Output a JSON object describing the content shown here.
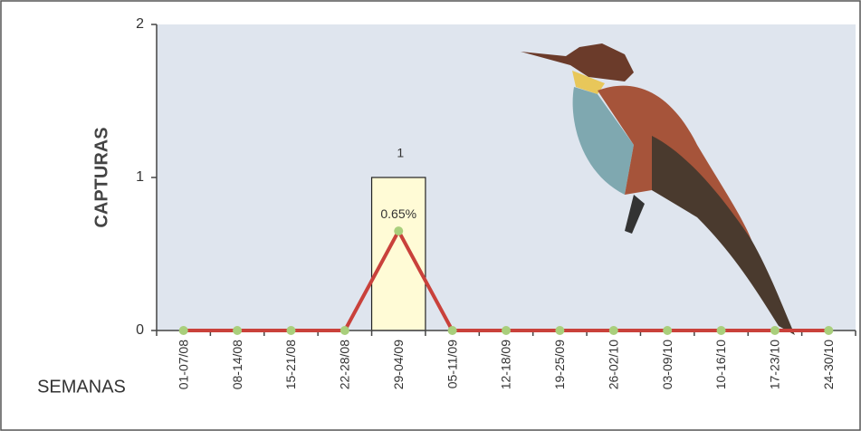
{
  "chart_data": {
    "type": "combo",
    "y_label": "CAPTURAS",
    "x_label": "SEMANAS",
    "categories": [
      "01-07/08",
      "08-14/08",
      "15-21/08",
      "22-28/08",
      "29-04/09",
      "05-11/09",
      "12-18/09",
      "19-25/09",
      "26-02/10",
      "03-09/10",
      "10-16/10",
      "17-23/10",
      "24-30/10"
    ],
    "series": [
      {
        "type": "bar",
        "color": "#fffbd6",
        "values": [
          0,
          0,
          0,
          0,
          1,
          0,
          0,
          0,
          0,
          0,
          0,
          0,
          0
        ],
        "value_labels": [
          null,
          null,
          null,
          null,
          "1",
          null,
          null,
          null,
          null,
          null,
          null,
          null,
          null
        ]
      },
      {
        "type": "line",
        "color": "#c9413b",
        "marker_color": "#a9cf7c",
        "values": [
          0,
          0,
          0,
          0,
          0.65,
          0,
          0,
          0,
          0,
          0,
          0,
          0,
          0
        ],
        "value_labels": [
          null,
          null,
          null,
          null,
          "0.65%",
          null,
          null,
          null,
          null,
          null,
          null,
          null,
          null
        ]
      }
    ],
    "ylim": [
      0,
      2
    ],
    "yticks": [
      0,
      1,
      2
    ],
    "grid": false
  }
}
